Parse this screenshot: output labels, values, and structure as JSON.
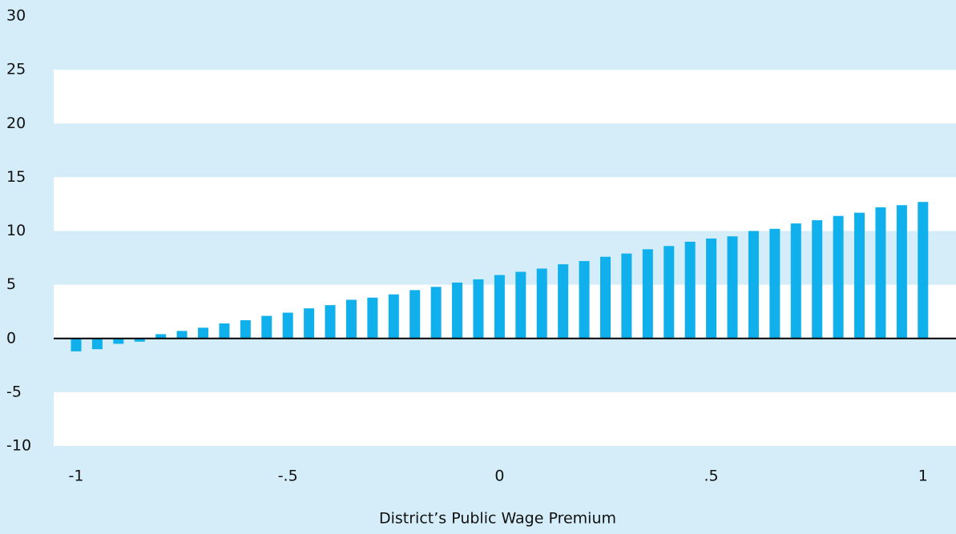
{
  "chart_data": {
    "type": "bar",
    "x_label": "District’s Public Wage Premium",
    "x": [
      -1,
      -0.95,
      -0.9,
      -0.85,
      -0.8,
      -0.75,
      -0.7,
      -0.65,
      -0.6,
      -0.55,
      -0.5,
      -0.45,
      -0.4,
      -0.35,
      -0.3,
      -0.25,
      -0.2,
      -0.15,
      -0.1,
      -0.05,
      0,
      0.05,
      0.1,
      0.15,
      0.2,
      0.25,
      0.3,
      0.35,
      0.4,
      0.45,
      0.5,
      0.55,
      0.6,
      0.65,
      0.7,
      0.75,
      0.8,
      0.85,
      0.9,
      0.95,
      1
    ],
    "values": [
      -1.2,
      -1.0,
      -0.5,
      -0.3,
      0.4,
      0.7,
      1.0,
      1.4,
      1.7,
      2.1,
      2.4,
      2.8,
      3.1,
      3.6,
      3.8,
      4.1,
      4.5,
      4.8,
      5.2,
      5.5,
      5.9,
      6.2,
      6.5,
      6.9,
      7.2,
      7.6,
      7.9,
      8.3,
      8.6,
      9.0,
      9.3,
      9.5,
      10.0,
      10.2,
      10.7,
      11.0,
      11.4,
      11.7,
      12.2,
      12.4,
      12.7
    ],
    "color": "#0fb0ec",
    "xlim": [
      -1.053,
      1.078
    ],
    "xticks": [
      -1,
      {
        "value": -0.5,
        "label": "-.5"
      },
      0,
      {
        "value": 0.5,
        "label": ".5"
      },
      1
    ],
    "ylim": [
      -10,
      31.5
    ],
    "yticks": [
      -10,
      -5,
      0,
      5,
      10,
      15,
      20,
      25,
      30
    ],
    "grid": "bands"
  }
}
